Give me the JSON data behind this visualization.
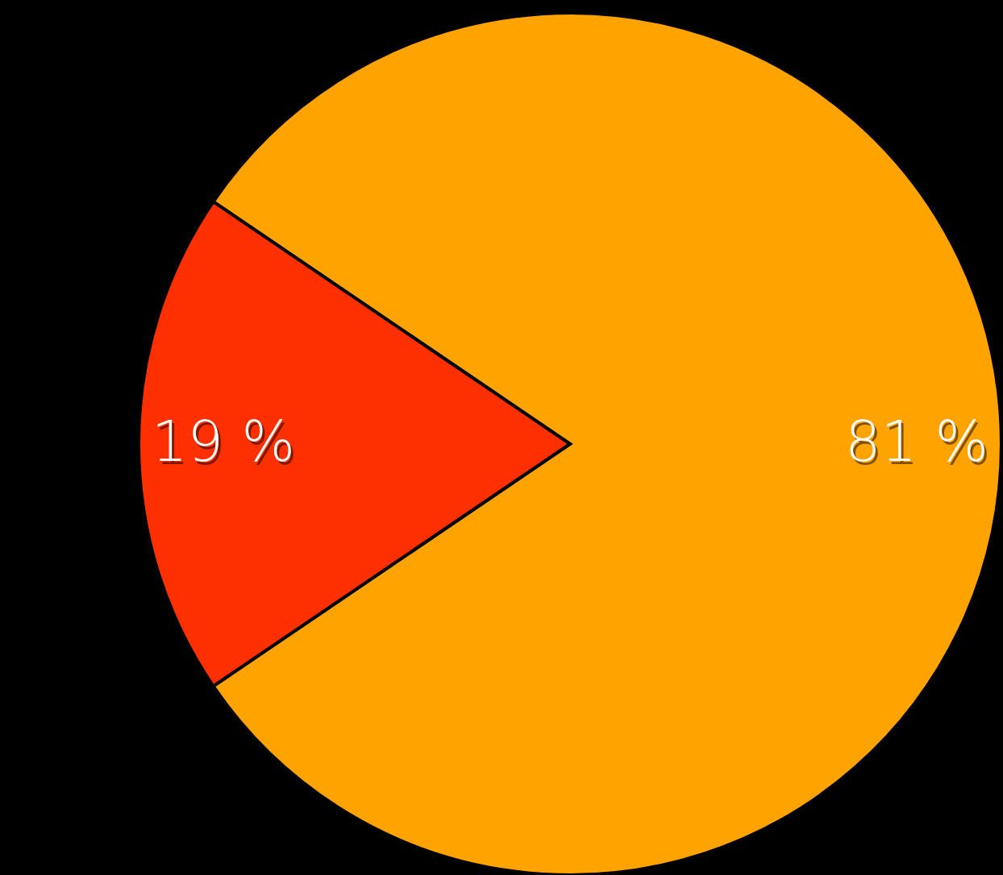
{
  "chart_data": {
    "type": "pie",
    "categories": [
      null,
      null
    ],
    "values": [
      81,
      19
    ],
    "colors": [
      "#ffa300",
      "#ff3000"
    ],
    "value_labels": [
      "81 %",
      "19 %"
    ]
  }
}
